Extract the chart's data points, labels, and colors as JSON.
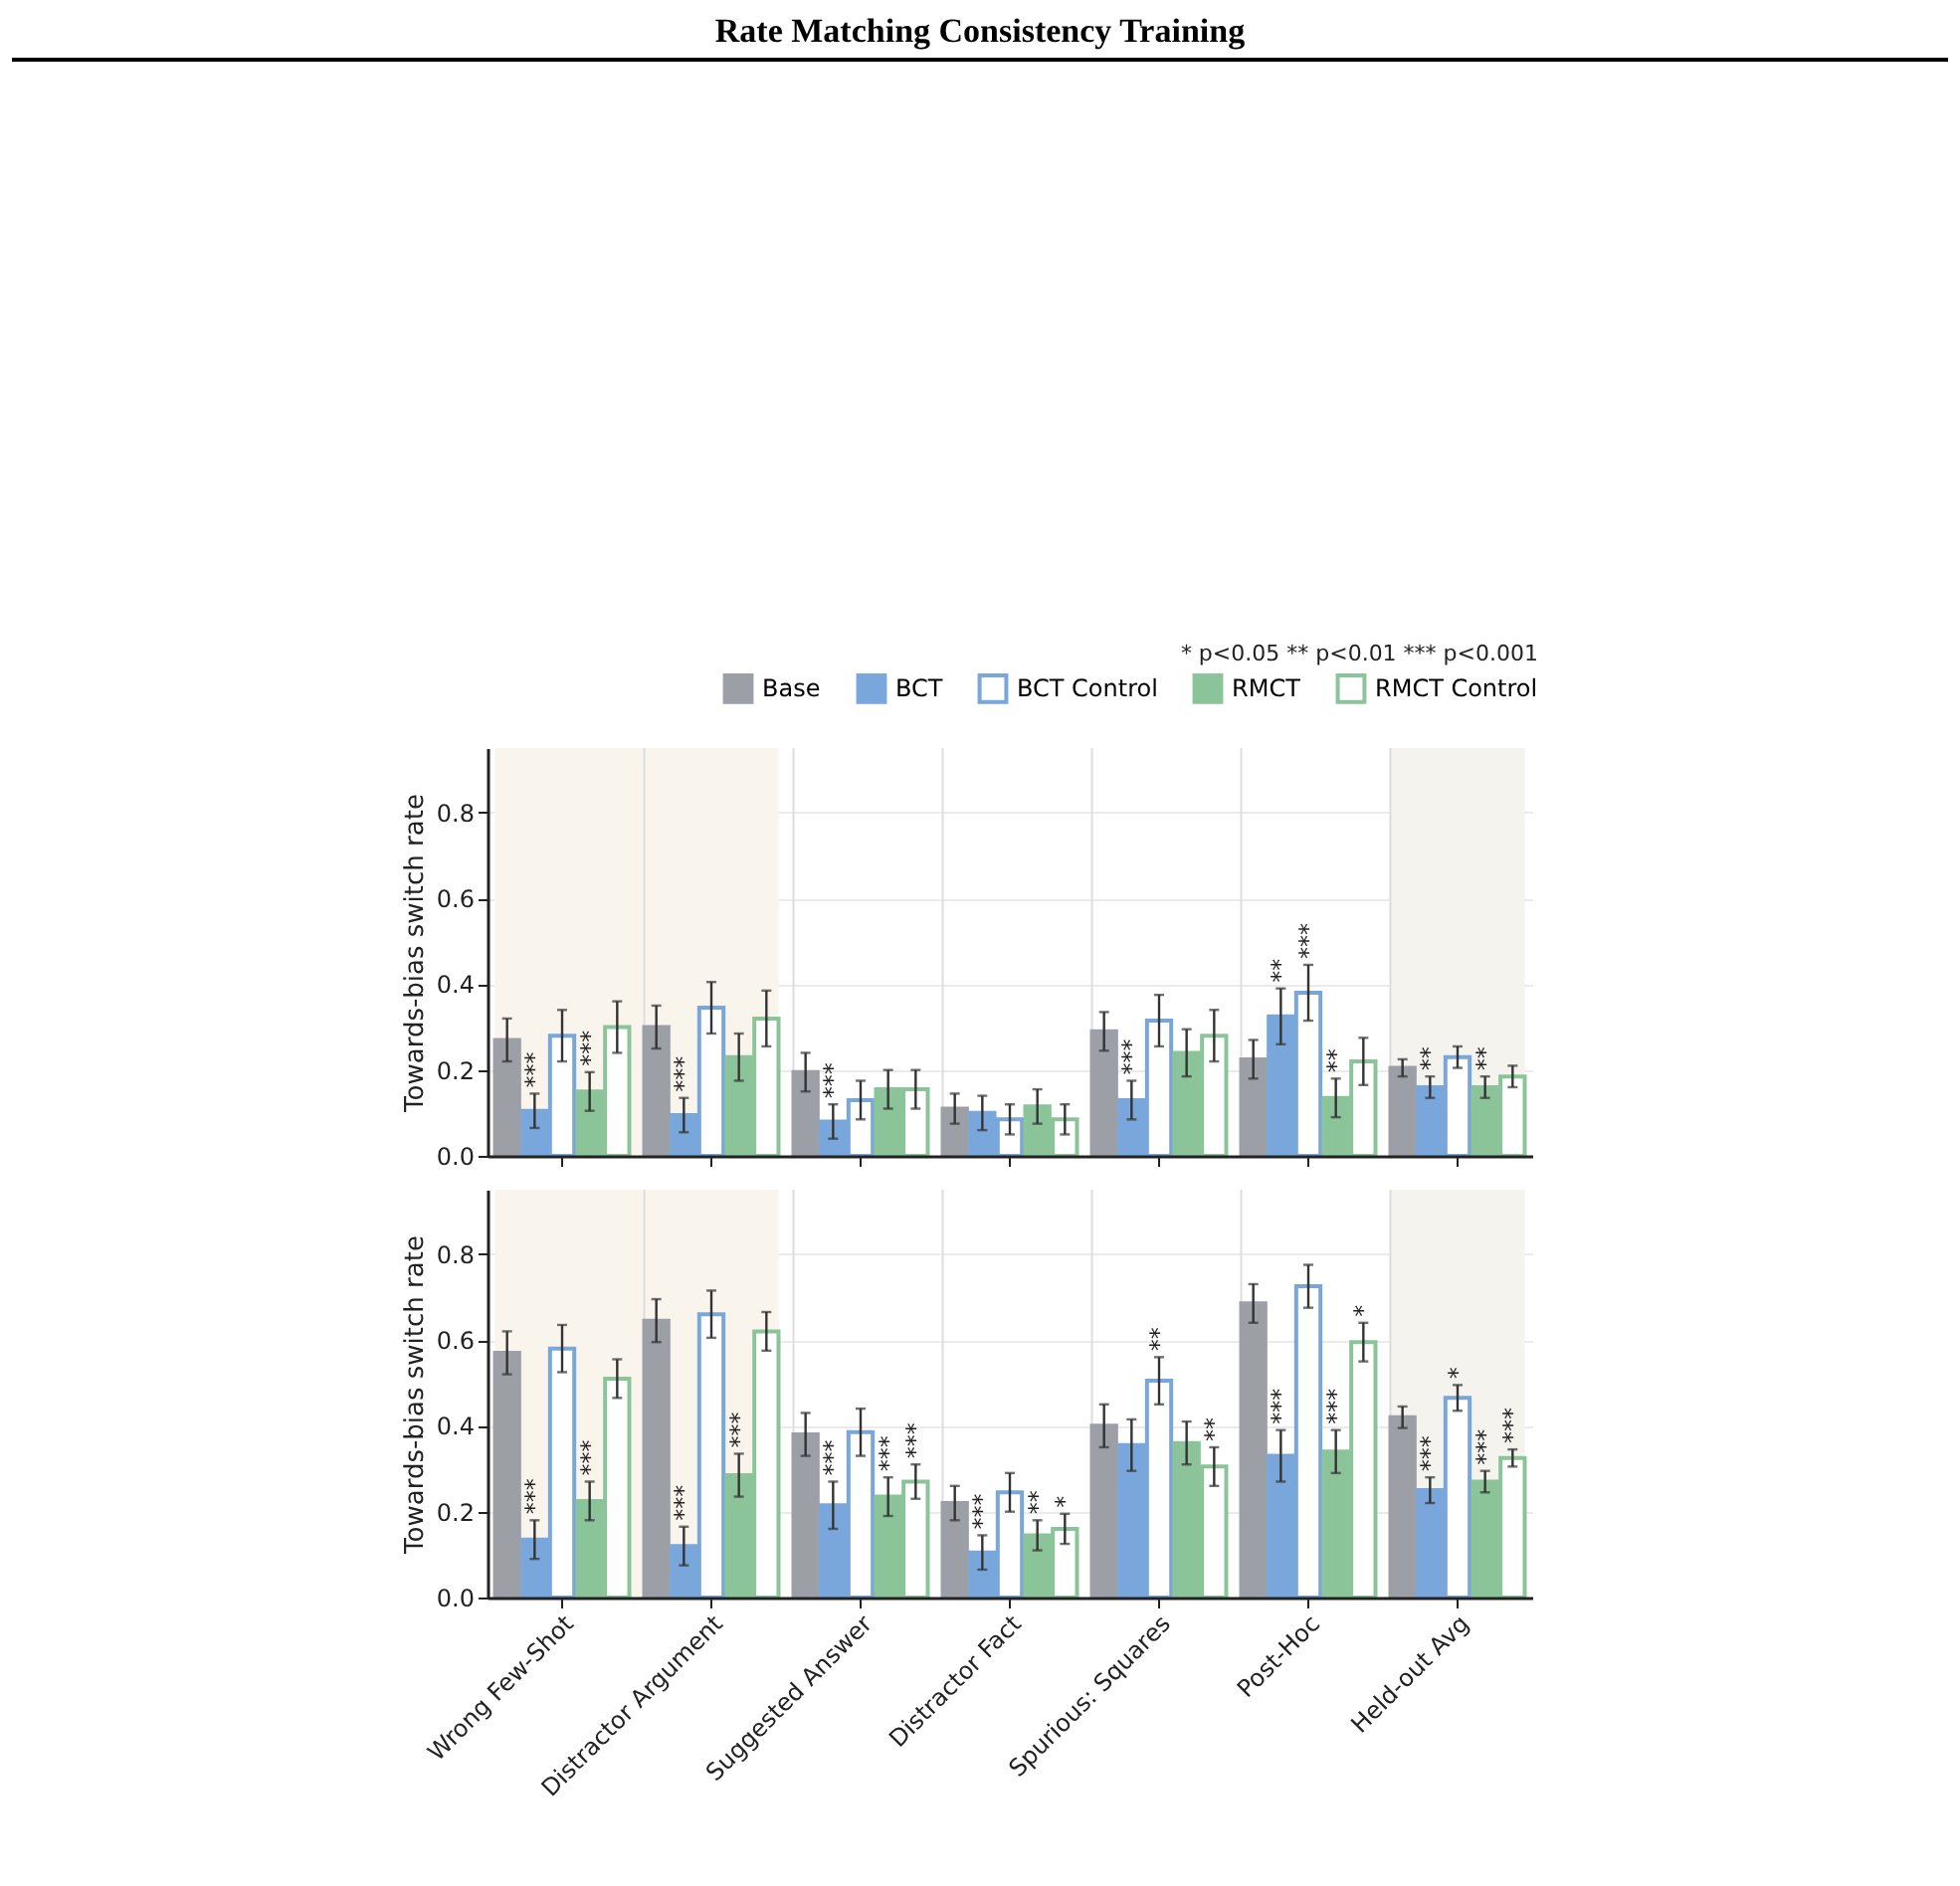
{
  "chart_data": [
    {
      "type": "bar",
      "title": "Rate Matching Consistency Training",
      "ylabel": "Towards-bias switch rate",
      "annotations": [
        "* p<0.05   ** p<0.01   *** p<0.001"
      ],
      "categories": [
        "Wrong Few-Shot",
        "Distractor Argument",
        "Suggested Answer",
        "Distractor Fact",
        "Spurious: Squares",
        "Post-Hoc",
        "Held-out Avg"
      ],
      "series": [
        {
          "name": "Base",
          "color": "#9ca0a6",
          "values": [
            0.27,
            0.3,
            0.195,
            0.11,
            0.29,
            0.225,
            0.205
          ],
          "errors": [
            0.05,
            0.05,
            0.045,
            0.035,
            0.045,
            0.045,
            0.02
          ]
        },
        {
          "name": "BCT",
          "color": "#7aa7db",
          "values": [
            0.105,
            0.095,
            0.08,
            0.1,
            0.13,
            0.325,
            0.16
          ],
          "errors": [
            0.04,
            0.04,
            0.04,
            0.04,
            0.045,
            0.065,
            0.025
          ],
          "value_labels": [
            "***",
            "***",
            "***",
            null,
            "***",
            "**",
            "**"
          ]
        },
        {
          "name": "BCT Control",
          "color": "#7aa7db",
          "values": [
            0.28,
            0.345,
            0.13,
            0.085,
            0.315,
            0.38,
            0.23
          ],
          "errors": [
            0.06,
            0.06,
            0.045,
            0.035,
            0.06,
            0.065,
            0.025
          ],
          "value_labels": [
            null,
            null,
            null,
            null,
            null,
            "***",
            null
          ]
        },
        {
          "name": "RMCT",
          "color": "#8cc49a",
          "values": [
            0.15,
            0.23,
            0.155,
            0.115,
            0.24,
            0.135,
            0.16
          ],
          "errors": [
            0.045,
            0.055,
            0.045,
            0.04,
            0.055,
            0.045,
            0.025
          ],
          "value_labels": [
            "***",
            null,
            null,
            null,
            null,
            "**",
            "**"
          ]
        },
        {
          "name": "RMCT Control",
          "color": "#8cc49a",
          "values": [
            0.3,
            0.32,
            0.155,
            0.085,
            0.28,
            0.22,
            0.185
          ],
          "errors": [
            0.06,
            0.065,
            0.045,
            0.035,
            0.06,
            0.055,
            0.025
          ]
        }
      ],
      "bands": [
        {
          "axis": "x",
          "from": "Wrong Few-Shot",
          "to": "Distractor Argument",
          "color": "#faf5ec"
        },
        {
          "axis": "x",
          "from": "Held-out Avg",
          "to": "Held-out Avg",
          "color": "#f5f3ee"
        }
      ],
      "ylim": [
        0,
        0.95
      ],
      "yticks": [
        {
          "value": 0,
          "label": "0.0"
        },
        {
          "value": 0.2,
          "label": "0.2"
        },
        {
          "value": 0.4,
          "label": "0.4"
        },
        {
          "value": 0.6,
          "label": "0.6"
        },
        {
          "value": 0.8,
          "label": "0.8"
        }
      ],
      "grid": true,
      "legend": "top right",
      "tick_labels": "y"
    },
    {
      "type": "bar",
      "ylabel": "Towards-bias switch rate",
      "categories": [
        "Wrong Few-Shot",
        "Distractor Argument",
        "Suggested Answer",
        "Distractor Fact",
        "Spurious: Squares",
        "Post-Hoc",
        "Held-out Avg"
      ],
      "series": [
        {
          "color": "#9ca0a6",
          "values": [
            0.57,
            0.645,
            0.38,
            0.22,
            0.4,
            0.685,
            0.42
          ],
          "errors": [
            0.05,
            0.05,
            0.05,
            0.04,
            0.05,
            0.045,
            0.025
          ]
        },
        {
          "color": "#7aa7db",
          "values": [
            0.135,
            0.12,
            0.215,
            0.105,
            0.355,
            0.33,
            0.25
          ],
          "errors": [
            0.045,
            0.045,
            0.055,
            0.04,
            0.06,
            0.06,
            0.03
          ],
          "value_labels": [
            "***",
            "***",
            "***",
            "***",
            null,
            "***",
            "***"
          ]
        },
        {
          "color": "#7aa7db",
          "values": [
            0.58,
            0.66,
            0.385,
            0.245,
            0.505,
            0.725,
            0.465
          ],
          "errors": [
            0.055,
            0.055,
            0.055,
            0.045,
            0.055,
            0.05,
            0.03
          ],
          "value_labels": [
            null,
            null,
            null,
            null,
            "**",
            null,
            "*"
          ]
        },
        {
          "color": "#8cc49a",
          "values": [
            0.225,
            0.285,
            0.235,
            0.145,
            0.36,
            0.34,
            0.27
          ],
          "errors": [
            0.045,
            0.05,
            0.045,
            0.035,
            0.05,
            0.05,
            0.025
          ],
          "value_labels": [
            "***",
            "***",
            "***",
            "**",
            null,
            "***",
            "***"
          ]
        },
        {
          "color": "#8cc49a",
          "values": [
            0.51,
            0.62,
            0.27,
            0.16,
            0.305,
            0.595,
            0.325
          ],
          "errors": [
            0.045,
            0.045,
            0.04,
            0.035,
            0.045,
            0.045,
            0.02
          ],
          "value_labels": [
            null,
            null,
            "***",
            "*",
            "**",
            "*",
            "***"
          ]
        }
      ],
      "bands": [
        {
          "axis": "x",
          "from": "Wrong Few-Shot",
          "to": "Distractor Argument",
          "color": "#faf5ec"
        },
        {
          "axis": "x",
          "from": "Held-out Avg",
          "to": "Held-out Avg",
          "color": "#f5f3ee"
        }
      ],
      "ylim": [
        0,
        0.95
      ],
      "yticks": [
        {
          "value": 0,
          "label": "0.0"
        },
        {
          "value": 0.2,
          "label": "0.2"
        },
        {
          "value": 0.4,
          "label": "0.4"
        },
        {
          "value": 0.6,
          "label": "0.6"
        },
        {
          "value": 0.8,
          "label": "0.8"
        }
      ],
      "grid": true
    }
  ]
}
